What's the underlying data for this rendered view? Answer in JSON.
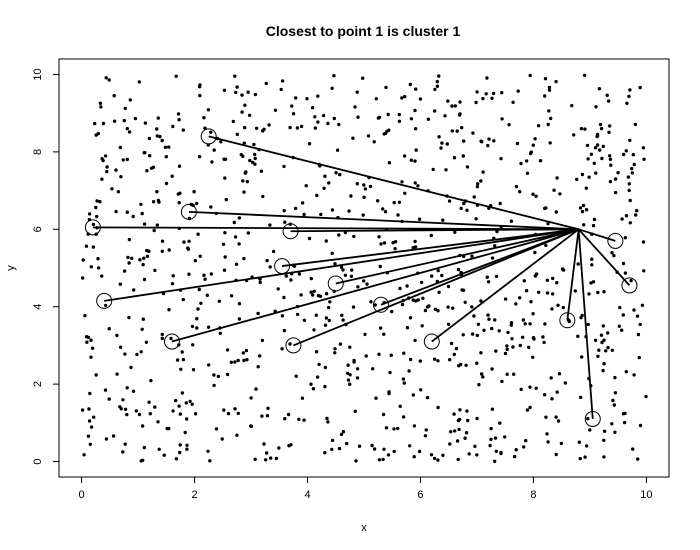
{
  "chart_data": {
    "type": "scatter",
    "title": "Closest to point 1 is cluster 1",
    "xlabel": "x",
    "ylabel": "y",
    "xlim": [
      -0.4,
      10.4
    ],
    "ylim": [
      -0.4,
      10.4
    ],
    "x_ticks": [
      0,
      2,
      4,
      6,
      8,
      10
    ],
    "y_ticks": [
      0,
      2,
      4,
      6,
      8,
      10
    ],
    "grid": false,
    "legend": "none",
    "scatter_point_count": 1000,
    "scatter_x_range": [
      0,
      10
    ],
    "scatter_y_range": [
      0,
      10
    ],
    "point_1": {
      "x": 8.8,
      "y": 6.0
    },
    "cluster_centers": [
      {
        "x": 0.2,
        "y": 6.05
      },
      {
        "x": 0.4,
        "y": 4.15
      },
      {
        "x": 1.6,
        "y": 3.1
      },
      {
        "x": 1.9,
        "y": 6.45
      },
      {
        "x": 2.25,
        "y": 8.4
      },
      {
        "x": 3.55,
        "y": 5.05
      },
      {
        "x": 3.7,
        "y": 5.95
      },
      {
        "x": 3.75,
        "y": 3.0
      },
      {
        "x": 4.5,
        "y": 4.6
      },
      {
        "x": 5.3,
        "y": 4.05
      },
      {
        "x": 6.2,
        "y": 3.1
      },
      {
        "x": 8.6,
        "y": 3.65
      },
      {
        "x": 9.05,
        "y": 1.1
      },
      {
        "x": 9.45,
        "y": 5.7
      },
      {
        "x": 9.7,
        "y": 4.55
      }
    ],
    "colors": {
      "points": "#000000",
      "lines": "#000000",
      "circles": "#000000",
      "background": "#ffffff"
    }
  }
}
